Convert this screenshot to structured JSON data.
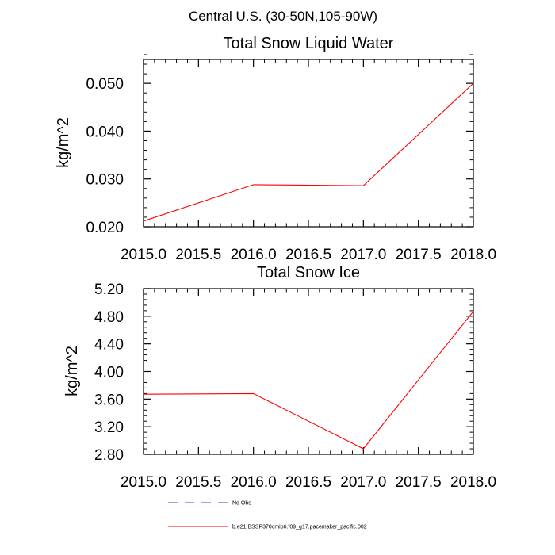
{
  "figure": {
    "suptitle": "Central U.S. (30-50N,105-90W)"
  },
  "chart_data": [
    {
      "type": "line",
      "title": "Total Snow Liquid Water",
      "xlabel": "",
      "ylabel": "kg/m^2",
      "xlim": [
        2015.0,
        2018.0
      ],
      "ylim": [
        0.02,
        0.055
      ],
      "xticks": [
        2015.0,
        2015.5,
        2016.0,
        2016.5,
        2017.0,
        2017.5,
        2018.0
      ],
      "xtick_labels": [
        "2015.0",
        "2015.5",
        "2016.0",
        "2016.5",
        "2017.0",
        "2017.5",
        "2018.0"
      ],
      "yticks": [
        0.02,
        0.03,
        0.04,
        0.05
      ],
      "ytick_labels": [
        "0.020",
        "0.030",
        "0.040",
        "0.050"
      ],
      "yminor_step": 0.002,
      "xminor_step": 0.1,
      "series": [
        {
          "name": "b.e21.BSSP370cmip6.f09_g17.pacemaker_pacific.002",
          "color": "#ff0000",
          "x": [
            2015.0,
            2016.0,
            2017.0,
            2018.0
          ],
          "y": [
            0.0212,
            0.0288,
            0.0286,
            0.05
          ]
        }
      ]
    },
    {
      "type": "line",
      "title": "Total Snow Ice",
      "xlabel": "",
      "ylabel": "kg/m^2",
      "xlim": [
        2015.0,
        2018.0
      ],
      "ylim": [
        2.8,
        5.2
      ],
      "xticks": [
        2015.0,
        2015.5,
        2016.0,
        2016.5,
        2017.0,
        2017.5,
        2018.0
      ],
      "xtick_labels": [
        "2015.0",
        "2015.5",
        "2016.0",
        "2016.5",
        "2017.0",
        "2017.5",
        "2018.0"
      ],
      "yticks": [
        2.8,
        3.2,
        3.6,
        4.0,
        4.4,
        4.8,
        5.2
      ],
      "ytick_labels": [
        "2.80",
        "3.20",
        "3.60",
        "4.00",
        "4.40",
        "4.80",
        "5.20"
      ],
      "yminor_step": 0.08,
      "xminor_step": 0.1,
      "series": [
        {
          "name": "b.e21.BSSP370cmip6.f09_g17.pacemaker_pacific.002",
          "color": "#ff0000",
          "x": [
            2015.0,
            2016.0,
            2017.0,
            2018.0
          ],
          "y": [
            3.67,
            3.68,
            2.88,
            4.87
          ]
        }
      ]
    }
  ],
  "legend": {
    "placement": "bottom",
    "items": [
      {
        "label": "No Obs",
        "color": "#4a4aa0",
        "style": "dashed"
      },
      {
        "label": "b.e21.BSSP370cmip6.f09_g17.pacemaker_pacific.002",
        "color": "#ff0000",
        "style": "solid"
      }
    ]
  }
}
